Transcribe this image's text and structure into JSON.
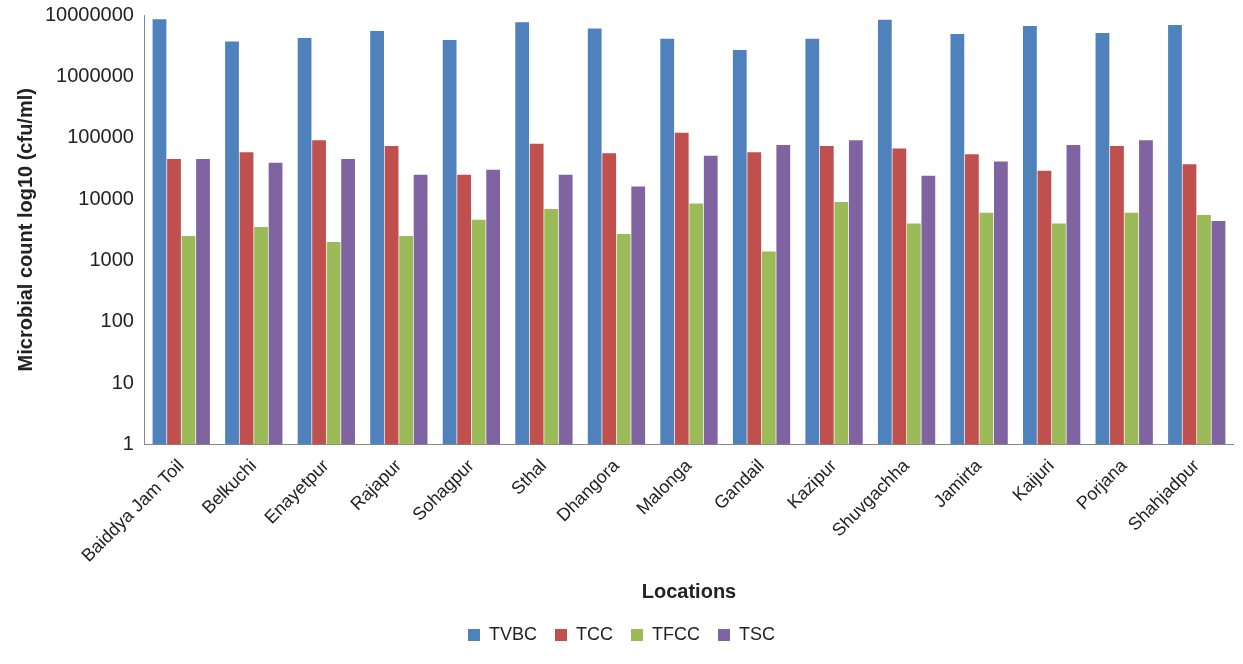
{
  "chart_data": {
    "type": "bar",
    "xlabel": "Locations",
    "ylabel": "Microbial count log10 (cfu/ml)",
    "categories": [
      "Baiddya Jam Toil",
      "Belkuchi",
      "Enayetpur",
      "Rajapur",
      "Sohagpur",
      "Sthal",
      "Dhangora",
      "Malonga",
      "Gandail",
      "Kazipur",
      "Shuvgachha",
      "Jamirta",
      "Kaijuri",
      "Porjana",
      "Shahjadpur"
    ],
    "series": [
      {
        "name": "TVBC",
        "color": "#4f81bd",
        "values": [
          8500000,
          3700000,
          4200000,
          5500000,
          3900000,
          7600000,
          6000000,
          4100000,
          2700000,
          4100000,
          8400000,
          4900000,
          6600000,
          5100000,
          6900000
        ]
      },
      {
        "name": "TCC",
        "color": "#c0504d",
        "values": [
          45000,
          58000,
          91000,
          73000,
          25000,
          80000,
          56000,
          120000,
          58000,
          73000,
          67000,
          54000,
          29000,
          73000,
          37000
        ]
      },
      {
        "name": "TFCC",
        "color": "#9bbb59",
        "values": [
          2500,
          3500,
          2000,
          2500,
          4600,
          6900,
          2700,
          8500,
          1400,
          9000,
          4000,
          6000,
          4000,
          6000,
          5500
        ]
      },
      {
        "name": "TSC",
        "color": "#8064a2",
        "values": [
          45000,
          39000,
          45000,
          25000,
          30000,
          25000,
          16000,
          51000,
          76000,
          91000,
          24000,
          41000,
          76000,
          91000,
          4400
        ]
      }
    ],
    "log": "y",
    "ylim": [
      1,
      10000000
    ],
    "yticks": [
      1,
      10,
      100,
      1000,
      10000,
      100000,
      1000000,
      10000000
    ],
    "grid": false,
    "legend": "bottom"
  }
}
